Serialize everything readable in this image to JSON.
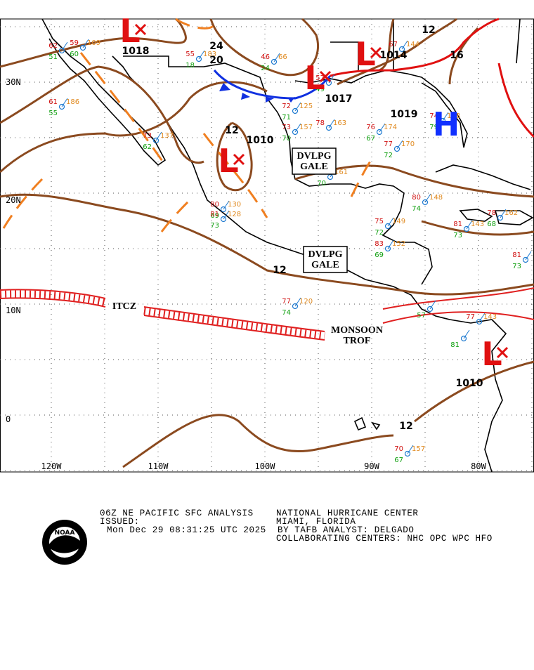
{
  "map": {
    "lat_labels": [
      "30N",
      "20N",
      "10N",
      "0"
    ],
    "lon_labels": [
      "120W",
      "110W",
      "100W",
      "90W",
      "80W"
    ],
    "isobar_labels": [
      "1018",
      "24",
      "20",
      "1014",
      "12",
      "16",
      "1017",
      "1019",
      "12",
      "1010",
      "12",
      "1010",
      "12"
    ],
    "systems": [
      "L",
      "L",
      "L",
      "H",
      "L",
      "L"
    ],
    "features": [
      {
        "lines": [
          "DVLPG",
          "GALE"
        ]
      },
      {
        "lines": [
          "DVLPG",
          "GALE"
        ]
      },
      {
        "lines": [
          "ITCZ"
        ]
      },
      {
        "lines": [
          "MONSOON",
          "TROF"
        ]
      }
    ],
    "stations": [
      {
        "t": 62,
        "d": 51
      },
      {
        "t": 59,
        "p": 109,
        "d": 60
      },
      {
        "t": 55,
        "p": 183,
        "d": 18
      },
      {
        "t": 46,
        "p": 66,
        "d": 24
      },
      {
        "t": 57,
        "d": 49
      },
      {
        "t": 61,
        "p": 186,
        "d": 55
      },
      {
        "t": 73,
        "p": 137,
        "d": 62
      },
      {
        "t": 72,
        "p": 125,
        "d": 71
      },
      {
        "t": 73,
        "p": 157,
        "d": 70
      },
      {
        "t": 78,
        "p": 163
      },
      {
        "t": 76,
        "p": 174,
        "d": 67
      },
      {
        "t": 77,
        "p": 170,
        "d": 72
      },
      {
        "p": 161,
        "d": 70
      },
      {
        "t": 67,
        "p": 144
      },
      {
        "t": 74,
        "p": 178,
        "d": 79
      },
      {
        "t": 80,
        "p": 148,
        "d": 74
      },
      {
        "t": 80,
        "p": 130,
        "d": 69
      },
      {
        "t": 81,
        "p": 128,
        "d": 73
      },
      {
        "t": 75,
        "p": 149,
        "d": 72
      },
      {
        "t": 83,
        "p": 152,
        "d": 69
      },
      {
        "t": 81,
        "p": 143,
        "d": 73
      },
      {
        "t": 78,
        "p": 162,
        "d": 68
      },
      {
        "t": 81,
        "d": 73
      },
      {
        "t": 77,
        "p": 120,
        "d": 74
      },
      {
        "t": 77,
        "p": 143
      },
      {
        "d": 57
      },
      {
        "d": 81
      },
      {
        "t": 70,
        "p": 157,
        "d": 67
      }
    ]
  },
  "footer": {
    "title": "06Z NE PACIFIC SFC ANALYSIS",
    "issued": "ISSUED:",
    "time": "Mon Dec 29 08:31:25 UTC 2025",
    "center": "NATIONAL HURRICANE CENTER",
    "location": "MIAMI, FLORIDA",
    "analyst": "BY TAFB ANALYST: DELGADO",
    "collab": "COLLABORATING CENTERS: NHC OPC WPC HFO",
    "logo": "NOAA"
  }
}
